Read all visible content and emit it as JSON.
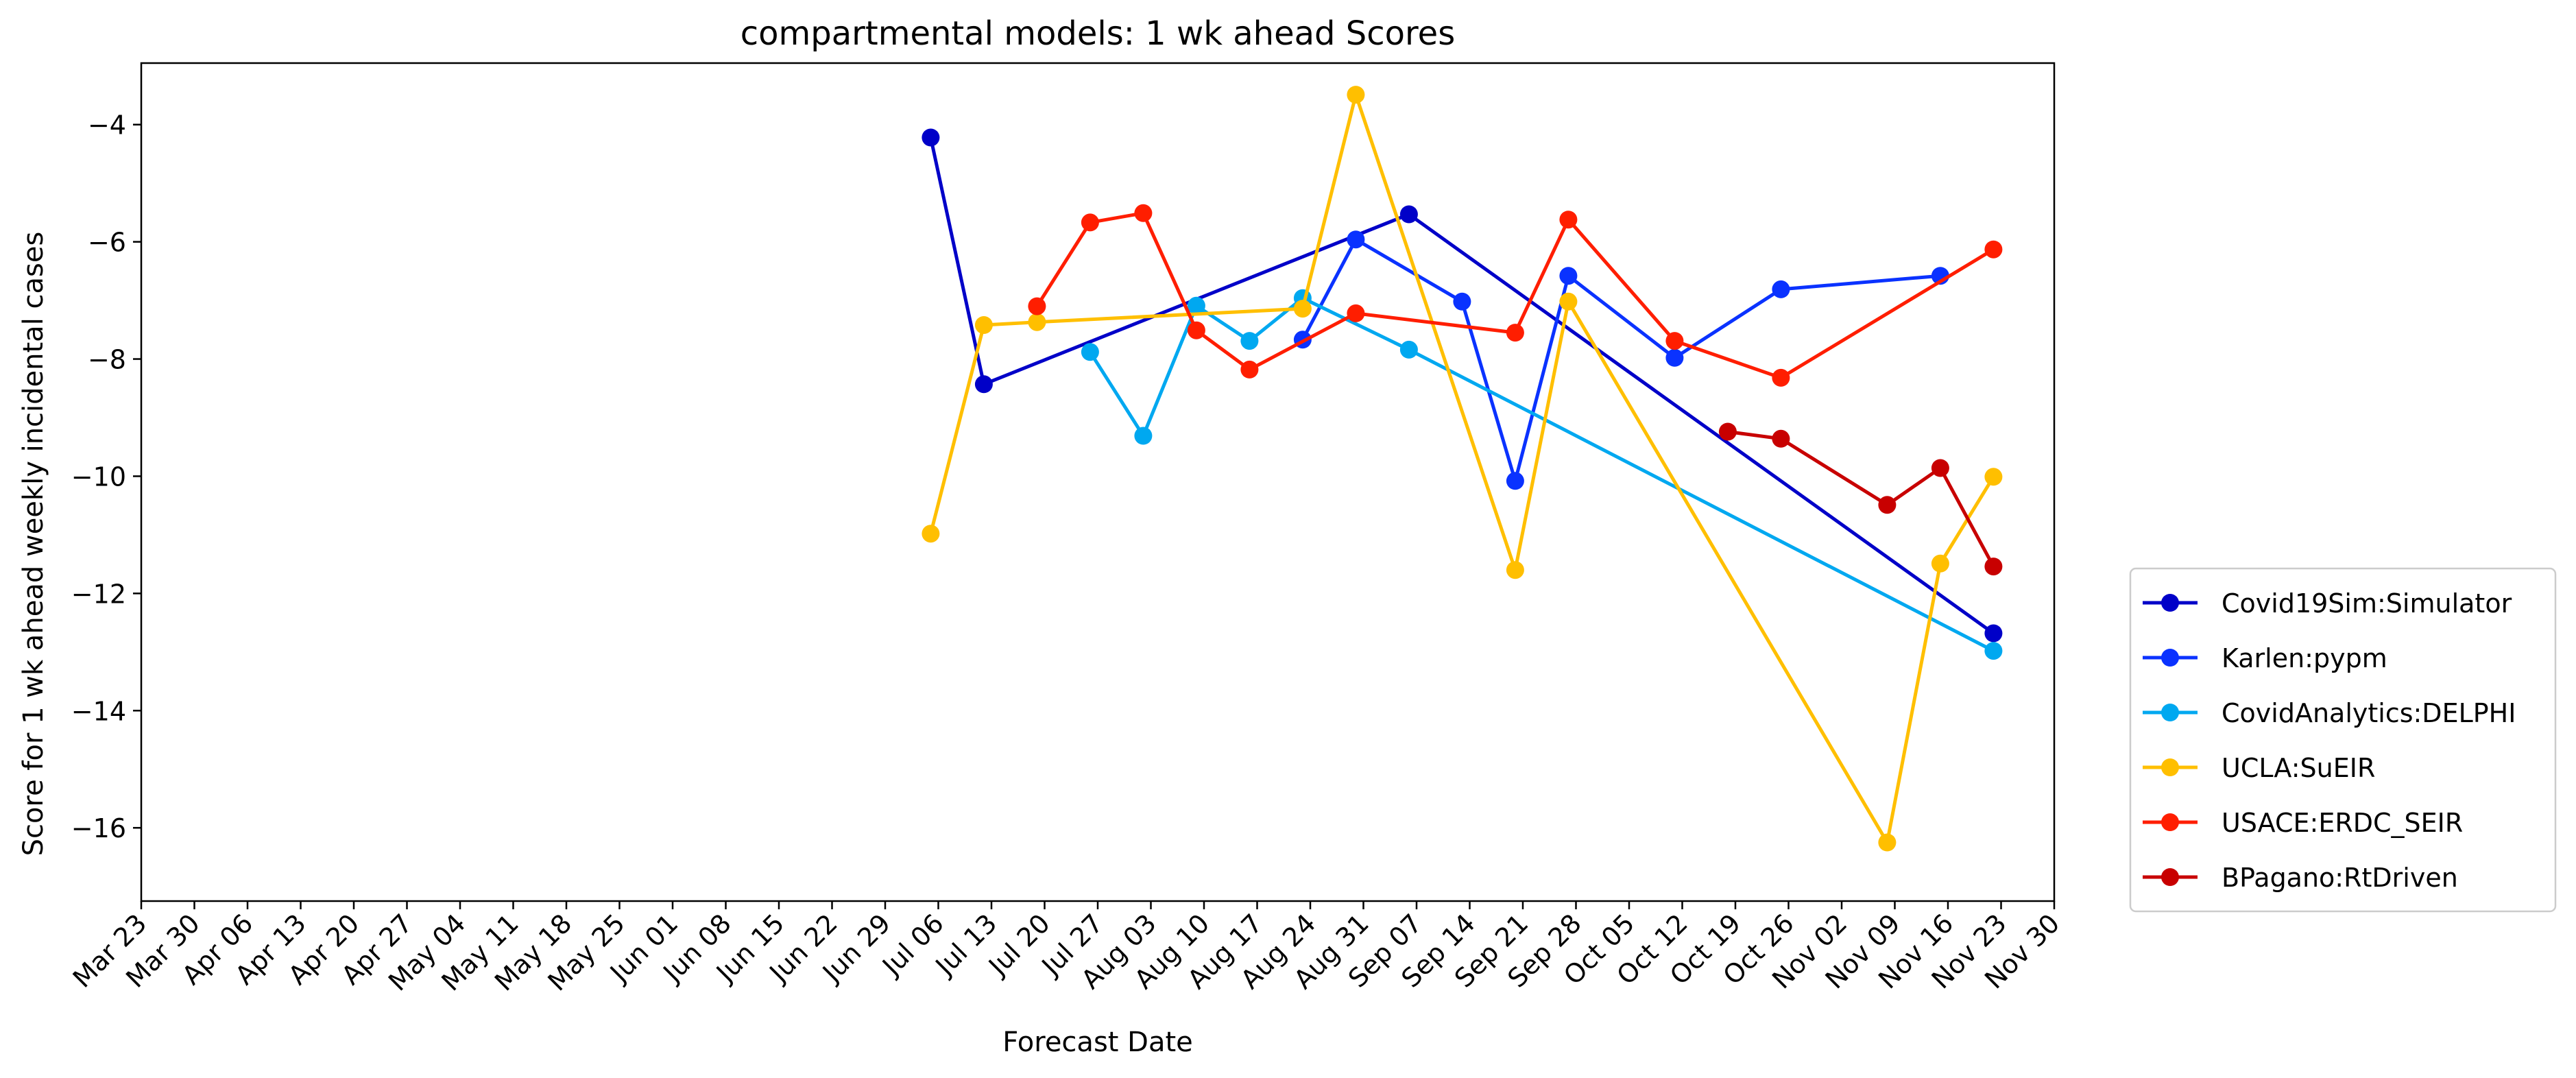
{
  "chart_data": {
    "type": "line",
    "title": "compartmental models: 1 wk ahead Scores",
    "xlabel": "Forecast Date",
    "ylabel": "Score for 1 wk ahead weekly incidental cases",
    "x_tick_labels": [
      "Mar 23",
      "Mar 30",
      "Apr 06",
      "Apr 13",
      "Apr 20",
      "Apr 27",
      "May 04",
      "May 11",
      "May 18",
      "May 25",
      "Jun 01",
      "Jun 08",
      "Jun 15",
      "Jun 22",
      "Jun 29",
      "Jul 06",
      "Jul 13",
      "Jul 20",
      "Jul 27",
      "Aug 03",
      "Aug 10",
      "Aug 17",
      "Aug 24",
      "Aug 31",
      "Sep 07",
      "Sep 14",
      "Sep 21",
      "Sep 28",
      "Oct 05",
      "Oct 12",
      "Oct 19",
      "Oct 26",
      "Nov 02",
      "Nov 09",
      "Nov 16",
      "Nov 23",
      "Nov 30"
    ],
    "y_ticks": [
      -4,
      -6,
      -8,
      -10,
      -12,
      -14,
      -16
    ],
    "y_tick_labels": [
      "−4",
      "−6",
      "−8",
      "−10",
      "−12",
      "−14",
      "−16"
    ],
    "xlim": [
      "2020-03-23",
      "2020-11-30"
    ],
    "ylim": [
      -17.25,
      -2.95
    ],
    "grid": false,
    "legend_position": "outside right, lower",
    "series": [
      {
        "name": "Covid19Sim:Simulator",
        "color": "#0000c8",
        "points": [
          {
            "x": "2020-07-05",
            "y": -4.22
          },
          {
            "x": "2020-07-12",
            "y": -8.43
          },
          {
            "x": "2020-09-06",
            "y": -5.53
          },
          {
            "x": "2020-11-22",
            "y": -12.68
          }
        ]
      },
      {
        "name": "Karlen:pypm",
        "color": "#0a32ff",
        "points": [
          {
            "x": "2020-08-23",
            "y": -7.67
          },
          {
            "x": "2020-08-30",
            "y": -5.96
          },
          {
            "x": "2020-09-13",
            "y": -7.02
          },
          {
            "x": "2020-09-20",
            "y": -10.08
          },
          {
            "x": "2020-09-27",
            "y": -6.58
          },
          {
            "x": "2020-10-11",
            "y": -7.98
          },
          {
            "x": "2020-10-25",
            "y": -6.81
          },
          {
            "x": "2020-11-15",
            "y": -6.58
          }
        ]
      },
      {
        "name": "CovidAnalytics:DELPHI",
        "color": "#00a8f0",
        "points": [
          {
            "x": "2020-07-26",
            "y": -7.88
          },
          {
            "x": "2020-08-02",
            "y": -9.31
          },
          {
            "x": "2020-08-09",
            "y": -7.09
          },
          {
            "x": "2020-08-16",
            "y": -7.69
          },
          {
            "x": "2020-08-23",
            "y": -6.96
          },
          {
            "x": "2020-09-06",
            "y": -7.84
          },
          {
            "x": "2020-11-22",
            "y": -12.98
          }
        ]
      },
      {
        "name": "UCLA:SuEIR",
        "color": "#ffbf00",
        "points": [
          {
            "x": "2020-07-05",
            "y": -10.98
          },
          {
            "x": "2020-07-12",
            "y": -7.42
          },
          {
            "x": "2020-07-19",
            "y": -7.37
          },
          {
            "x": "2020-08-23",
            "y": -7.14
          },
          {
            "x": "2020-08-30",
            "y": -3.49
          },
          {
            "x": "2020-09-20",
            "y": -11.6
          },
          {
            "x": "2020-09-27",
            "y": -7.02
          },
          {
            "x": "2020-11-08",
            "y": -16.25
          },
          {
            "x": "2020-11-15",
            "y": -11.49
          },
          {
            "x": "2020-11-22",
            "y": -10.01
          }
        ]
      },
      {
        "name": "USACE:ERDC_SEIR",
        "color": "#ff1e00",
        "points": [
          {
            "x": "2020-07-19",
            "y": -7.1
          },
          {
            "x": "2020-07-26",
            "y": -5.67
          },
          {
            "x": "2020-08-02",
            "y": -5.51
          },
          {
            "x": "2020-08-09",
            "y": -7.51
          },
          {
            "x": "2020-08-16",
            "y": -8.18
          },
          {
            "x": "2020-08-30",
            "y": -7.22
          },
          {
            "x": "2020-09-20",
            "y": -7.55
          },
          {
            "x": "2020-09-27",
            "y": -5.62
          },
          {
            "x": "2020-10-11",
            "y": -7.69
          },
          {
            "x": "2020-10-25",
            "y": -8.32
          },
          {
            "x": "2020-11-22",
            "y": -6.13
          }
        ]
      },
      {
        "name": "BPagano:RtDriven",
        "color": "#c80000",
        "points": [
          {
            "x": "2020-10-18",
            "y": -9.24
          },
          {
            "x": "2020-10-25",
            "y": -9.36
          },
          {
            "x": "2020-11-08",
            "y": -10.49
          },
          {
            "x": "2020-11-15",
            "y": -9.86
          },
          {
            "x": "2020-11-22",
            "y": -11.54
          }
        ]
      }
    ]
  }
}
